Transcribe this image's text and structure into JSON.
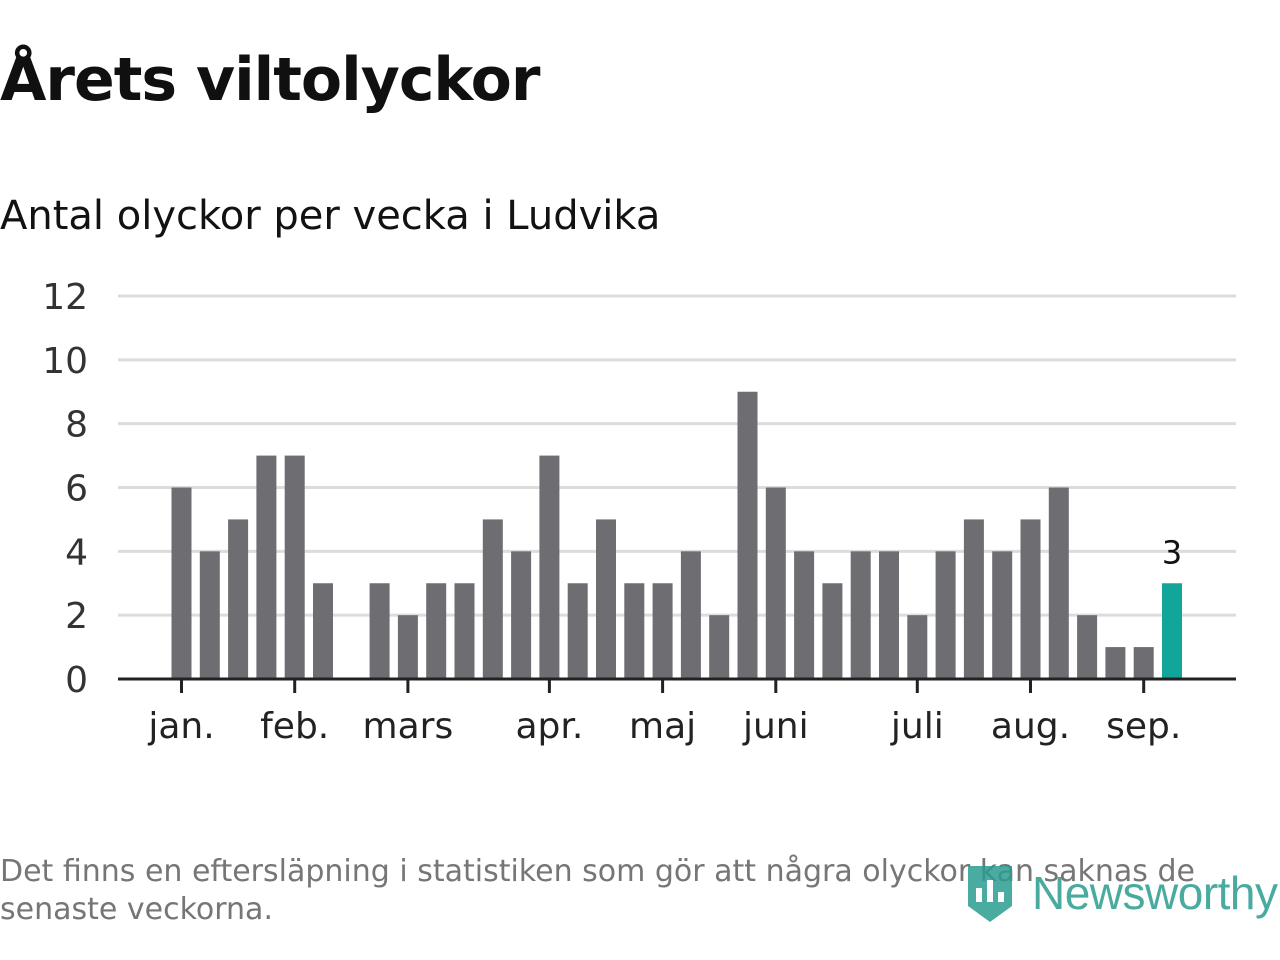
{
  "page": {
    "title": "Årets viltolyckor",
    "subtitle": "Antal olyckor per vecka i Ludvika",
    "footnote": "Det finns en eftersläpning i statistiken som gör att några olyckor kan saknas de senaste veckorna.",
    "logo_text": "Newsworthy"
  },
  "colors": {
    "bar": "#6e6d72",
    "highlight": "#12a59a",
    "grid": "#dcdcdc",
    "axis": "#222222",
    "brand": "#2a9d8f"
  },
  "chart_data": {
    "type": "bar",
    "title": "Årets viltolyckor",
    "subtitle": "Antal olyckor per vecka i Ludvika",
    "xlabel": "",
    "ylabel": "",
    "ylim": [
      0,
      12
    ],
    "y_ticks": [
      0,
      2,
      4,
      6,
      8,
      10,
      12
    ],
    "grid": true,
    "x_tick_labels": [
      {
        "label": "jan.",
        "week": 1
      },
      {
        "label": "feb.",
        "week": 5
      },
      {
        "label": "mars",
        "week": 9
      },
      {
        "label": "apr.",
        "week": 14
      },
      {
        "label": "maj",
        "week": 18
      },
      {
        "label": "juni",
        "week": 22
      },
      {
        "label": "juli",
        "week": 27
      },
      {
        "label": "aug.",
        "week": 31
      },
      {
        "label": "sep.",
        "week": 35
      }
    ],
    "weeks": [
      1,
      2,
      3,
      4,
      5,
      6,
      7,
      8,
      9,
      10,
      11,
      12,
      13,
      14,
      15,
      16,
      17,
      18,
      19,
      20,
      21,
      22,
      23,
      24,
      25,
      26,
      27,
      28,
      29,
      30,
      31,
      32,
      33,
      34,
      35,
      36
    ],
    "values": [
      6,
      4,
      5,
      7,
      7,
      3,
      null,
      3,
      2,
      3,
      3,
      5,
      4,
      7,
      3,
      5,
      3,
      3,
      4,
      2,
      9,
      6,
      4,
      3,
      4,
      4,
      2,
      4,
      5,
      4,
      5,
      6,
      2,
      1,
      1,
      3
    ],
    "highlight_index": 35,
    "highlight_label": "3"
  }
}
